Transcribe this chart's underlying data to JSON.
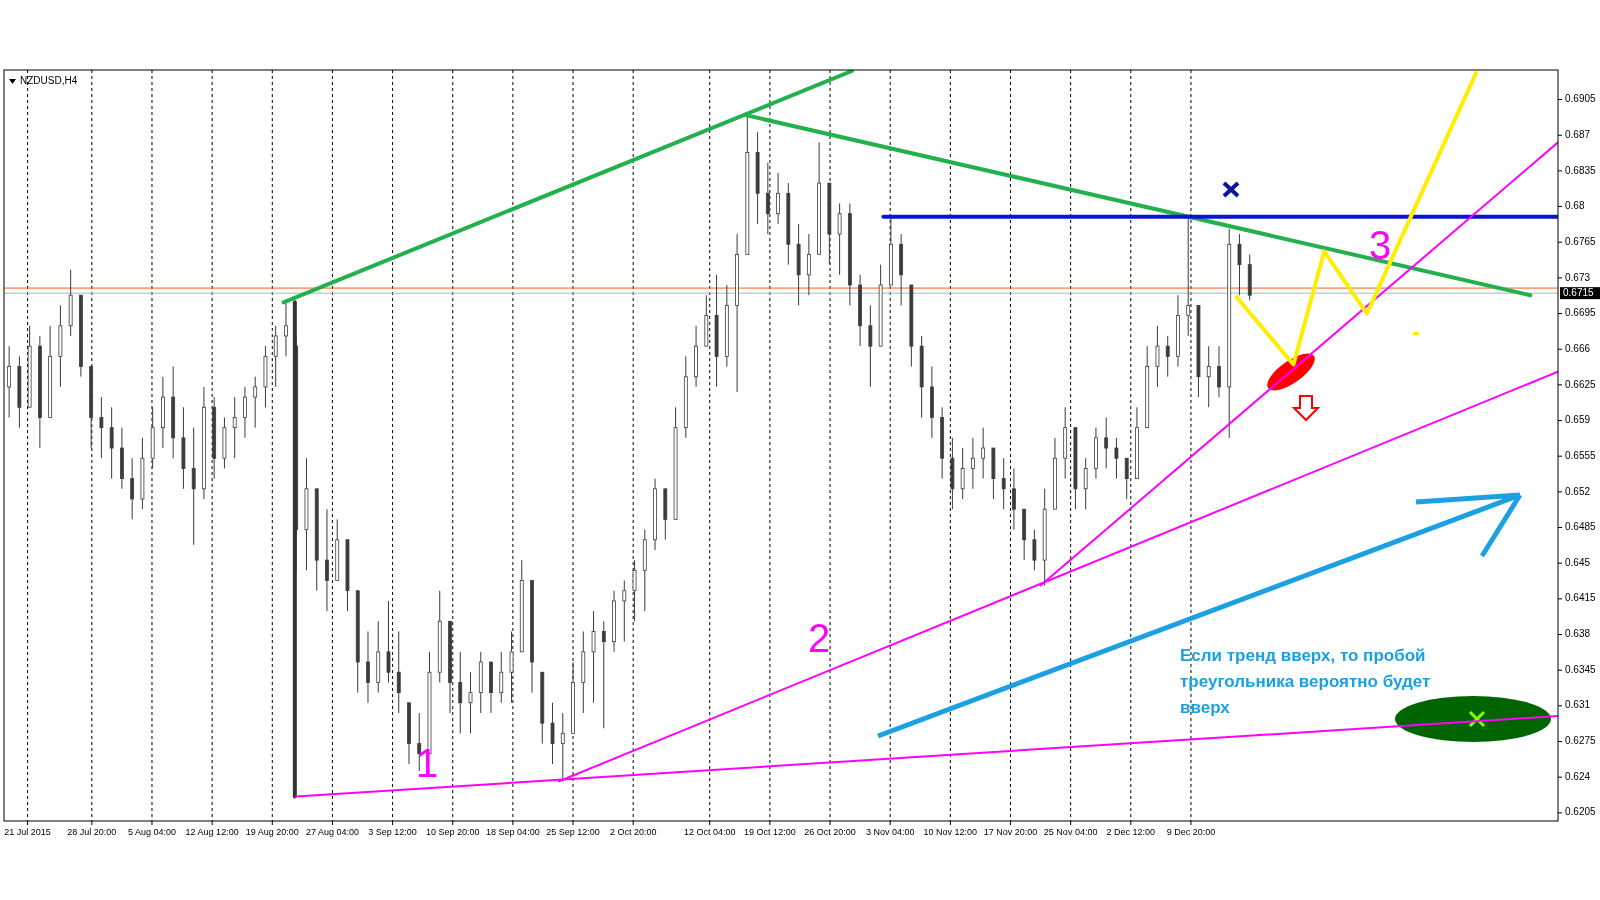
{
  "chart_data": {
    "type": "candlestick",
    "title": "NZDUSD,H4",
    "color": "#3c3c3c",
    "x": [
      "2015-07-18T18:00",
      "2015-07-20T00:00",
      "2015-07-21T06:00",
      "2015-07-22T12:00",
      "2015-07-23T18:00",
      "2015-07-25T00:00",
      "2015-07-26T06:00",
      "2015-07-27T12:00",
      "2015-07-28T18:00",
      "2015-07-30T00:00",
      "2015-07-31T06:00",
      "2015-08-01T12:00",
      "2015-08-02T18:00",
      "2015-08-04T00:00",
      "2015-08-05T06:00",
      "2015-08-06T12:00",
      "2015-08-07T18:00",
      "2015-08-09T00:00",
      "2015-08-10T06:00",
      "2015-08-11T12:00",
      "2015-08-12T18:00",
      "2015-08-14T00:00",
      "2015-08-15T06:00",
      "2015-08-16T12:00",
      "2015-08-17T18:00",
      "2015-08-19T00:00",
      "2015-08-20T06:00",
      "2015-08-21T12:00",
      "2015-08-22T18:00",
      "2015-08-24T00:00",
      "2015-08-25T06:00",
      "2015-08-26T12:00",
      "2015-08-27T18:00",
      "2015-08-29T00:00",
      "2015-08-30T06:00",
      "2015-08-31T12:00",
      "2015-09-01T18:00",
      "2015-09-03T00:00",
      "2015-09-04T06:00",
      "2015-09-05T12:00",
      "2015-09-06T18:00",
      "2015-09-08T00:00",
      "2015-09-09T06:00",
      "2015-09-10T12:00",
      "2015-09-11T18:00",
      "2015-09-13T00:00",
      "2015-09-14T06:00",
      "2015-09-15T12:00",
      "2015-09-16T18:00",
      "2015-09-18T00:00",
      "2015-09-19T06:00",
      "2015-09-20T12:00",
      "2015-09-21T18:00",
      "2015-09-23T00:00",
      "2015-09-24T06:00",
      "2015-09-25T12:00",
      "2015-09-26T18:00",
      "2015-09-28T00:00",
      "2015-09-29T06:00",
      "2015-09-30T12:00",
      "2015-10-01T18:00",
      "2015-10-03T00:00",
      "2015-10-04T06:00",
      "2015-10-05T12:00",
      "2015-10-06T18:00",
      "2015-10-08T00:00",
      "2015-10-09T06:00",
      "2015-10-10T12:00",
      "2015-10-11T18:00",
      "2015-10-13T00:00",
      "2015-10-14T06:00",
      "2015-10-15T12:00",
      "2015-10-16T18:00",
      "2015-10-18T00:00",
      "2015-10-19T06:00",
      "2015-10-20T12:00",
      "2015-10-21T18:00",
      "2015-10-23T00:00",
      "2015-10-24T06:00",
      "2015-10-25T12:00",
      "2015-10-26T18:00",
      "2015-10-28T00:00",
      "2015-10-29T06:00",
      "2015-10-30T12:00",
      "2015-10-31T18:00",
      "2015-11-02T00:00",
      "2015-11-03T06:00",
      "2015-11-04T12:00",
      "2015-11-05T18:00",
      "2015-11-07T00:00",
      "2015-11-08T06:00",
      "2015-11-09T12:00",
      "2015-11-10T18:00",
      "2015-11-12T00:00",
      "2015-11-13T06:00",
      "2015-11-14T12:00",
      "2015-11-15T18:00",
      "2015-11-17T00:00",
      "2015-11-18T06:00",
      "2015-11-19T12:00",
      "2015-11-20T18:00",
      "2015-11-22T00:00",
      "2015-11-23T06:00",
      "2015-11-24T12:00",
      "2015-11-25T18:00",
      "2015-11-27T00:00",
      "2015-11-28T06:00",
      "2015-11-29T12:00",
      "2015-11-30T18:00",
      "2015-12-02T00:00",
      "2015-12-03T06:00",
      "2015-12-04T12:00",
      "2015-12-05T18:00",
      "2015-12-07T00:00",
      "2015-12-08T06:00",
      "2015-12-09T12:00",
      "2015-12-10T18:00",
      "2015-12-12T00:00",
      "2015-12-13T06:00",
      "2015-12-14T12:00",
      "2015-12-15T18:00",
      "2015-12-17T00:00"
    ],
    "ohlc": [
      [
        0.6623,
        0.6663,
        0.6593,
        0.6643
      ],
      [
        0.6643,
        0.6653,
        0.6583,
        0.6603
      ],
      [
        0.6603,
        0.6683,
        0.6603,
        0.6663
      ],
      [
        0.6663,
        0.6673,
        0.6563,
        0.6593
      ],
      [
        0.6593,
        0.6683,
        0.6593,
        0.6653
      ],
      [
        0.6653,
        0.6703,
        0.6623,
        0.6683
      ],
      [
        0.6683,
        0.6738,
        0.6673,
        0.6713
      ],
      [
        0.6713,
        0.6713,
        0.6633,
        0.6643
      ],
      [
        0.6643,
        0.6643,
        0.6563,
        0.6593
      ],
      [
        0.6593,
        0.6613,
        0.6553,
        0.6583
      ],
      [
        0.6583,
        0.6603,
        0.6533,
        0.6563
      ],
      [
        0.6563,
        0.6583,
        0.6523,
        0.6533
      ],
      [
        0.6533,
        0.6553,
        0.6493,
        0.6513
      ],
      [
        0.6513,
        0.6573,
        0.6503,
        0.6553
      ],
      [
        0.6553,
        0.6603,
        0.6543,
        0.6583
      ],
      [
        0.6583,
        0.6633,
        0.6563,
        0.6613
      ],
      [
        0.6613,
        0.6643,
        0.6553,
        0.6573
      ],
      [
        0.6573,
        0.6603,
        0.6523,
        0.6543
      ],
      [
        0.6543,
        0.6583,
        0.6468,
        0.6523
      ],
      [
        0.6523,
        0.6623,
        0.6513,
        0.6603
      ],
      [
        0.6603,
        0.6613,
        0.6533,
        0.6553
      ],
      [
        0.6553,
        0.6593,
        0.6543,
        0.6583
      ],
      [
        0.6583,
        0.6613,
        0.6553,
        0.6593
      ],
      [
        0.6593,
        0.6623,
        0.6573,
        0.6613
      ],
      [
        0.6613,
        0.6633,
        0.6583,
        0.6623
      ],
      [
        0.6623,
        0.6663,
        0.6603,
        0.6653
      ],
      [
        0.6653,
        0.6683,
        0.6623,
        0.6673
      ],
      [
        0.6673,
        0.6706,
        0.6653,
        0.6683
      ],
      [
        0.6663,
        0.6673,
        0.6443,
        0.6483
      ],
      [
        0.6483,
        0.6553,
        0.6443,
        0.6523
      ],
      [
        0.6523,
        0.6523,
        0.6423,
        0.6453
      ],
      [
        0.6453,
        0.6503,
        0.6403,
        0.6433
      ],
      [
        0.6433,
        0.6493,
        0.6433,
        0.6473
      ],
      [
        0.6473,
        0.6473,
        0.6403,
        0.6423
      ],
      [
        0.6423,
        0.6423,
        0.6323,
        0.6353
      ],
      [
        0.6353,
        0.6383,
        0.6313,
        0.6333
      ],
      [
        0.6333,
        0.6393,
        0.6323,
        0.6363
      ],
      [
        0.6363,
        0.6413,
        0.6333,
        0.6343
      ],
      [
        0.6343,
        0.6383,
        0.6303,
        0.6323
      ],
      [
        0.6313,
        0.6313,
        0.6253,
        0.6273
      ],
      [
        0.6273,
        0.6303,
        0.6246,
        0.6263
      ],
      [
        0.6263,
        0.6363,
        0.6263,
        0.6343
      ],
      [
        0.6343,
        0.6423,
        0.6333,
        0.6393
      ],
      [
        0.6393,
        0.6393,
        0.6303,
        0.6333
      ],
      [
        0.6333,
        0.6363,
        0.6283,
        0.6313
      ],
      [
        0.6313,
        0.6343,
        0.6283,
        0.6323
      ],
      [
        0.6323,
        0.6363,
        0.6303,
        0.6353
      ],
      [
        0.6353,
        0.6353,
        0.6303,
        0.6323
      ],
      [
        0.6323,
        0.6363,
        0.6313,
        0.6343
      ],
      [
        0.6343,
        0.6383,
        0.6313,
        0.6363
      ],
      [
        0.6363,
        0.6453,
        0.6363,
        0.6433
      ],
      [
        0.6433,
        0.6433,
        0.6323,
        0.6353
      ],
      [
        0.6343,
        0.6343,
        0.6273,
        0.6293
      ],
      [
        0.6293,
        0.6313,
        0.6253,
        0.6273
      ],
      [
        0.6273,
        0.6303,
        0.6236,
        0.6283
      ],
      [
        0.6283,
        0.6353,
        0.6283,
        0.6333
      ],
      [
        0.6333,
        0.6383,
        0.6303,
        0.6363
      ],
      [
        0.6363,
        0.6403,
        0.6313,
        0.6383
      ],
      [
        0.6383,
        0.6393,
        0.6288,
        0.6373
      ],
      [
        0.6373,
        0.6423,
        0.6363,
        0.6413
      ],
      [
        0.6413,
        0.6433,
        0.6373,
        0.6423
      ],
      [
        0.6423,
        0.6453,
        0.6393,
        0.6443
      ],
      [
        0.6443,
        0.6483,
        0.6403,
        0.6473
      ],
      [
        0.6473,
        0.6533,
        0.6463,
        0.6523
      ],
      [
        0.6523,
        0.6523,
        0.6473,
        0.6493
      ],
      [
        0.6493,
        0.6603,
        0.6493,
        0.6583
      ],
      [
        0.6583,
        0.6653,
        0.6573,
        0.6633
      ],
      [
        0.6633,
        0.6683,
        0.6623,
        0.6663
      ],
      [
        0.6663,
        0.6713,
        0.6663,
        0.6693
      ],
      [
        0.6693,
        0.6733,
        0.6623,
        0.6653
      ],
      [
        0.6653,
        0.6723,
        0.6643,
        0.6703
      ],
      [
        0.6703,
        0.6773,
        0.6618,
        0.6753
      ],
      [
        0.6753,
        0.689,
        0.6753,
        0.6853
      ],
      [
        0.6853,
        0.6873,
        0.6783,
        0.6813
      ],
      [
        0.6813,
        0.6843,
        0.6773,
        0.6793
      ],
      [
        0.6793,
        0.6833,
        0.6783,
        0.6813
      ],
      [
        0.6813,
        0.6823,
        0.6743,
        0.6763
      ],
      [
        0.6763,
        0.6783,
        0.6703,
        0.6733
      ],
      [
        0.6733,
        0.6773,
        0.6713,
        0.6753
      ],
      [
        0.6753,
        0.6863,
        0.6753,
        0.6823
      ],
      [
        0.6823,
        0.6823,
        0.6743,
        0.6773
      ],
      [
        0.6773,
        0.6803,
        0.6733,
        0.6793
      ],
      [
        0.6793,
        0.6803,
        0.6703,
        0.6723
      ],
      [
        0.6723,
        0.6733,
        0.6663,
        0.6683
      ],
      [
        0.6683,
        0.6703,
        0.6623,
        0.6663
      ],
      [
        0.6663,
        0.6743,
        0.6663,
        0.6723
      ],
      [
        0.6723,
        0.679,
        0.6723,
        0.6763
      ],
      [
        0.6763,
        0.6773,
        0.6703,
        0.6733
      ],
      [
        0.6723,
        0.6723,
        0.6643,
        0.6663
      ],
      [
        0.6663,
        0.6673,
        0.6593,
        0.6623
      ],
      [
        0.6623,
        0.6643,
        0.6573,
        0.6593
      ],
      [
        0.6593,
        0.6603,
        0.6533,
        0.6553
      ],
      [
        0.6553,
        0.6573,
        0.6503,
        0.6523
      ],
      [
        0.6523,
        0.6563,
        0.6513,
        0.6543
      ],
      [
        0.6543,
        0.6573,
        0.6523,
        0.6553
      ],
      [
        0.6553,
        0.6583,
        0.6533,
        0.6563
      ],
      [
        0.6563,
        0.6563,
        0.6513,
        0.6533
      ],
      [
        0.6533,
        0.6553,
        0.6503,
        0.6523
      ],
      [
        0.6523,
        0.6543,
        0.6483,
        0.6503
      ],
      [
        0.6503,
        0.6503,
        0.6453,
        0.6473
      ],
      [
        0.6473,
        0.6483,
        0.6443,
        0.6453
      ],
      [
        0.6453,
        0.6523,
        0.6428,
        0.6503
      ],
      [
        0.6503,
        0.6573,
        0.6503,
        0.6553
      ],
      [
        0.6553,
        0.6603,
        0.6533,
        0.6583
      ],
      [
        0.6583,
        0.6583,
        0.6503,
        0.6523
      ],
      [
        0.6523,
        0.6553,
        0.6503,
        0.6543
      ],
      [
        0.6543,
        0.6583,
        0.6533,
        0.6573
      ],
      [
        0.6573,
        0.6593,
        0.6543,
        0.6563
      ],
      [
        0.6563,
        0.6573,
        0.6533,
        0.6553
      ],
      [
        0.6553,
        0.6553,
        0.6513,
        0.6533
      ],
      [
        0.6533,
        0.6603,
        0.6533,
        0.6583
      ],
      [
        0.6583,
        0.6663,
        0.6583,
        0.6643
      ],
      [
        0.6643,
        0.6683,
        0.6623,
        0.6663
      ],
      [
        0.6663,
        0.6673,
        0.6633,
        0.6653
      ],
      [
        0.6653,
        0.6713,
        0.6643,
        0.6693
      ],
      [
        0.6693,
        0.6788,
        0.6673,
        0.6703
      ],
      [
        0.6703,
        0.6703,
        0.6613,
        0.6633
      ],
      [
        0.6633,
        0.6663,
        0.6603,
        0.6643
      ],
      [
        0.6643,
        0.6663,
        0.6613,
        0.6623
      ],
      [
        0.6623,
        0.6778,
        0.6573,
        0.6763
      ],
      [
        0.6763,
        0.6773,
        0.6713,
        0.6743
      ],
      [
        0.6743,
        0.6753,
        0.6708,
        0.6713
      ]
    ],
    "series": [
      {
        "type": "line",
        "color": "#333333",
        "x": [
          "2015-08-22T14:00",
          "2015-08-22T14:00"
        ],
        "values": [
          0.6706,
          0.6221
        ]
      },
      {
        "type": "line",
        "color": "#22b14c",
        "x": [
          "2015-08-21T05:00",
          "2015-10-29T12:00"
        ],
        "values": [
          0.6706,
          0.6933
        ]
      },
      {
        "type": "line",
        "color": "#22b14c",
        "x": [
          "2015-10-16T10:00",
          "2016-01-20T05:00"
        ],
        "values": [
          0.689,
          0.6713
        ]
      },
      {
        "type": "line",
        "color": "#0a14d2",
        "x": [
          "2015-11-02T08:00",
          "2016-01-23T14:00"
        ],
        "values": [
          0.679,
          0.679
        ]
      },
      {
        "type": "line",
        "color": "#ff00ff",
        "x": [
          "2015-08-22T17:00",
          "2016-01-23T14:00"
        ],
        "values": [
          0.6221,
          0.63
        ]
      },
      {
        "type": "line",
        "color": "#ff00ff",
        "x": [
          "2015-09-23T19:00",
          "2016-01-23T14:00"
        ],
        "values": [
          0.6236,
          0.6638
        ]
      },
      {
        "type": "line",
        "color": "#ff00ff",
        "x": [
          "2015-11-21T12:00",
          "2016-01-23T14:00"
        ],
        "values": [
          0.6428,
          0.6863
        ]
      },
      {
        "type": "line",
        "color": "#ffee00",
        "x": [
          "2015-12-15T10:00",
          "2015-12-22T08:00",
          "2015-12-26T02:00",
          "2015-12-31T07:00",
          "2016-01-13T14:00"
        ],
        "values": [
          0.6711,
          0.6645,
          0.6756,
          0.6695,
          0.6931
        ]
      }
    ],
    "xlim": [
      "2015-07-18T03:00",
      "2016-01-23T14:00"
    ],
    "xticks": [
      {
        "value": "2015-07-21",
        "label": "21 Jul 2015"
      },
      {
        "value": "2015-07-28T20:00",
        "label": "28 Jul 20:00"
      },
      {
        "value": "2015-08-05T04:00",
        "label": "5 Aug 04:00"
      },
      {
        "value": "2015-08-12T12:00",
        "label": "12 Aug 12:00"
      },
      {
        "value": "2015-08-19T20:00",
        "label": "19 Aug 20:00"
      },
      {
        "value": "2015-08-27T04:00",
        "label": "27 Aug 04:00"
      },
      {
        "value": "2015-09-03T12:00",
        "label": "3 Sep 12:00"
      },
      {
        "value": "2015-09-10T20:00",
        "label": "10 Sep 20:00"
      },
      {
        "value": "2015-09-18T04:00",
        "label": "18 Sep 04:00"
      },
      {
        "value": "2015-09-25T12:00",
        "label": "25 Sep 12:00"
      },
      {
        "value": "2015-10-02T20:00",
        "label": "2 Oct 20:00"
      },
      {
        "value": "2015-10-12T04:00",
        "label": "12 Oct 04:00"
      },
      {
        "value": "2015-10-19T12:00",
        "label": "19 Oct 12:00"
      },
      {
        "value": "2015-10-26T20:00",
        "label": "26 Oct 20:00"
      },
      {
        "value": "2015-11-03T04:00",
        "label": "3 Nov 04:00"
      },
      {
        "value": "2015-11-10T12:00",
        "label": "10 Nov 12:00"
      },
      {
        "value": "2015-11-17T20:00",
        "label": "17 Nov 20:00"
      },
      {
        "value": "2015-11-25T04:00",
        "label": "25 Nov 04:00"
      },
      {
        "value": "2015-12-02T12:00",
        "label": "2 Dec 12:00"
      },
      {
        "value": "2015-12-09T20:00",
        "label": "9 Dec 20:00"
      }
    ],
    "ylim": [
      0.6197,
      0.6934
    ],
    "yticks": [
      0.6205,
      0.624,
      0.6275,
      0.631,
      0.6345,
      0.638,
      0.6415,
      0.645,
      0.6485,
      0.652,
      0.6555,
      0.659,
      0.6625,
      0.666,
      0.6695,
      0.673,
      0.6765,
      0.68,
      0.6835,
      0.687,
      0.6905
    ],
    "grid": "x",
    "ref_lines": [
      {
        "axis": "y",
        "value": 0.672,
        "color": "#ff5a1e"
      },
      {
        "axis": "y",
        "value": 0.6715,
        "label": "0.6715",
        "color": "#b4b4b4"
      }
    ],
    "annotations": [
      "1",
      "2",
      "3",
      "Если тренд вверх, то пробой треугольника вероятно будет вверх"
    ]
  }
}
